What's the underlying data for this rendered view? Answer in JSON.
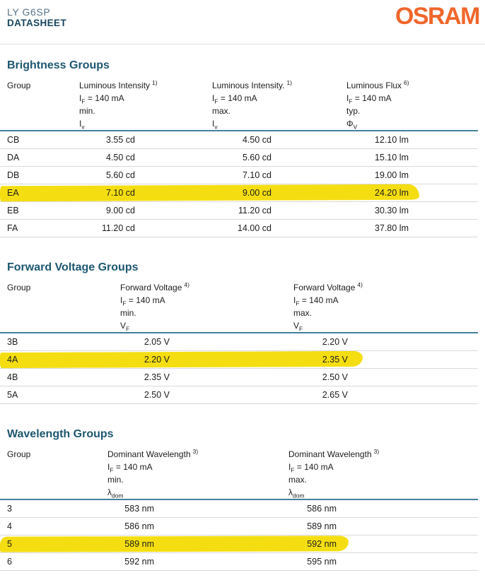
{
  "header": {
    "product": "LY G6SP",
    "doc_type": "DATASHEET",
    "brand": "OSRAM"
  },
  "colors": {
    "brand_orange": "#F0662B",
    "section_teal": "#1D5770",
    "rule_teal": "#44809A",
    "highlight_yellow": "#F4DE12"
  },
  "tables": [
    {
      "title": "Brightness Groups",
      "group_label": "Group",
      "columns": [
        {
          "name": "Luminous Intensity",
          "footnote": "1)",
          "cond_pre": "I",
          "cond_sub": "F",
          "cond_post": " = 140 mA",
          "limit": "min.",
          "sym_pre": "I",
          "sym_sub": "v"
        },
        {
          "name": "Luminous Intensity.",
          "footnote": "1)",
          "cond_pre": "I",
          "cond_sub": "F",
          "cond_post": " = 140 mA",
          "limit": "max.",
          "sym_pre": "I",
          "sym_sub": "v"
        },
        {
          "name": "Luminous Flux",
          "footnote": "6)",
          "cond_pre": "I",
          "cond_sub": "F",
          "cond_post": " = 140 mA",
          "limit": "typ.",
          "sym_pre": "Φ",
          "sym_sub": "V"
        }
      ],
      "rows": [
        {
          "group": "CB",
          "v1": "3.55 cd",
          "v2": "4.50 cd",
          "v3": "12.10 lm",
          "highlighted": false
        },
        {
          "group": "DA",
          "v1": "4.50 cd",
          "v2": "5.60 cd",
          "v3": "15.10 lm",
          "highlighted": false
        },
        {
          "group": "DB",
          "v1": "5.60 cd",
          "v2": "7.10 cd",
          "v3": "19.00 lm",
          "highlighted": false
        },
        {
          "group": "EA",
          "v1": "7.10 cd",
          "v2": "9.00 cd",
          "v3": "24.20 lm",
          "highlighted": true
        },
        {
          "group": "EB",
          "v1": "9.00 cd",
          "v2": "11.20 cd",
          "v3": "30.30 lm",
          "highlighted": false
        },
        {
          "group": "FA",
          "v1": "11.20 cd",
          "v2": "14.00 cd",
          "v3": "37.80 lm",
          "highlighted": false
        }
      ]
    },
    {
      "title": "Forward Voltage Groups",
      "group_label": "Group",
      "columns": [
        {
          "name": "Forward Voltage",
          "footnote": "4)",
          "cond_pre": "I",
          "cond_sub": "F",
          "cond_post": " = 140 mA",
          "limit": "min.",
          "sym_pre": "V",
          "sym_sub": "F"
        },
        {
          "name": "Forward Voltage",
          "footnote": "4)",
          "cond_pre": "I",
          "cond_sub": "F",
          "cond_post": " = 140 mA",
          "limit": "max.",
          "sym_pre": "V",
          "sym_sub": "F"
        }
      ],
      "rows": [
        {
          "group": "3B",
          "v1": "2.05 V",
          "v2": "2.20 V",
          "highlighted": false
        },
        {
          "group": "4A",
          "v1": "2.20 V",
          "v2": "2.35 V",
          "highlighted": true
        },
        {
          "group": "4B",
          "v1": "2.35 V",
          "v2": "2.50 V",
          "highlighted": false
        },
        {
          "group": "5A",
          "v1": "2.50 V",
          "v2": "2.65 V",
          "highlighted": false
        }
      ]
    },
    {
      "title": "Wavelength Groups",
      "group_label": "Group",
      "columns": [
        {
          "name": "Dominant Wavelength",
          "footnote": "3)",
          "cond_pre": "I",
          "cond_sub": "F",
          "cond_post": " = 140 mA",
          "limit": "min.",
          "sym_pre": "λ",
          "sym_sub": "dom"
        },
        {
          "name": "Dominant Wavelength",
          "footnote": "3)",
          "cond_pre": "I",
          "cond_sub": "F",
          "cond_post": " = 140 mA",
          "limit": "max.",
          "sym_pre": "λ",
          "sym_sub": "dom"
        }
      ],
      "rows": [
        {
          "group": "3",
          "v1": "583 nm",
          "v2": "586 nm",
          "highlighted": false
        },
        {
          "group": "4",
          "v1": "586 nm",
          "v2": "589 nm",
          "highlighted": false
        },
        {
          "group": "5",
          "v1": "589 nm",
          "v2": "592 nm",
          "highlighted": true
        },
        {
          "group": "6",
          "v1": "592 nm",
          "v2": "595 nm",
          "highlighted": false
        }
      ]
    }
  ]
}
